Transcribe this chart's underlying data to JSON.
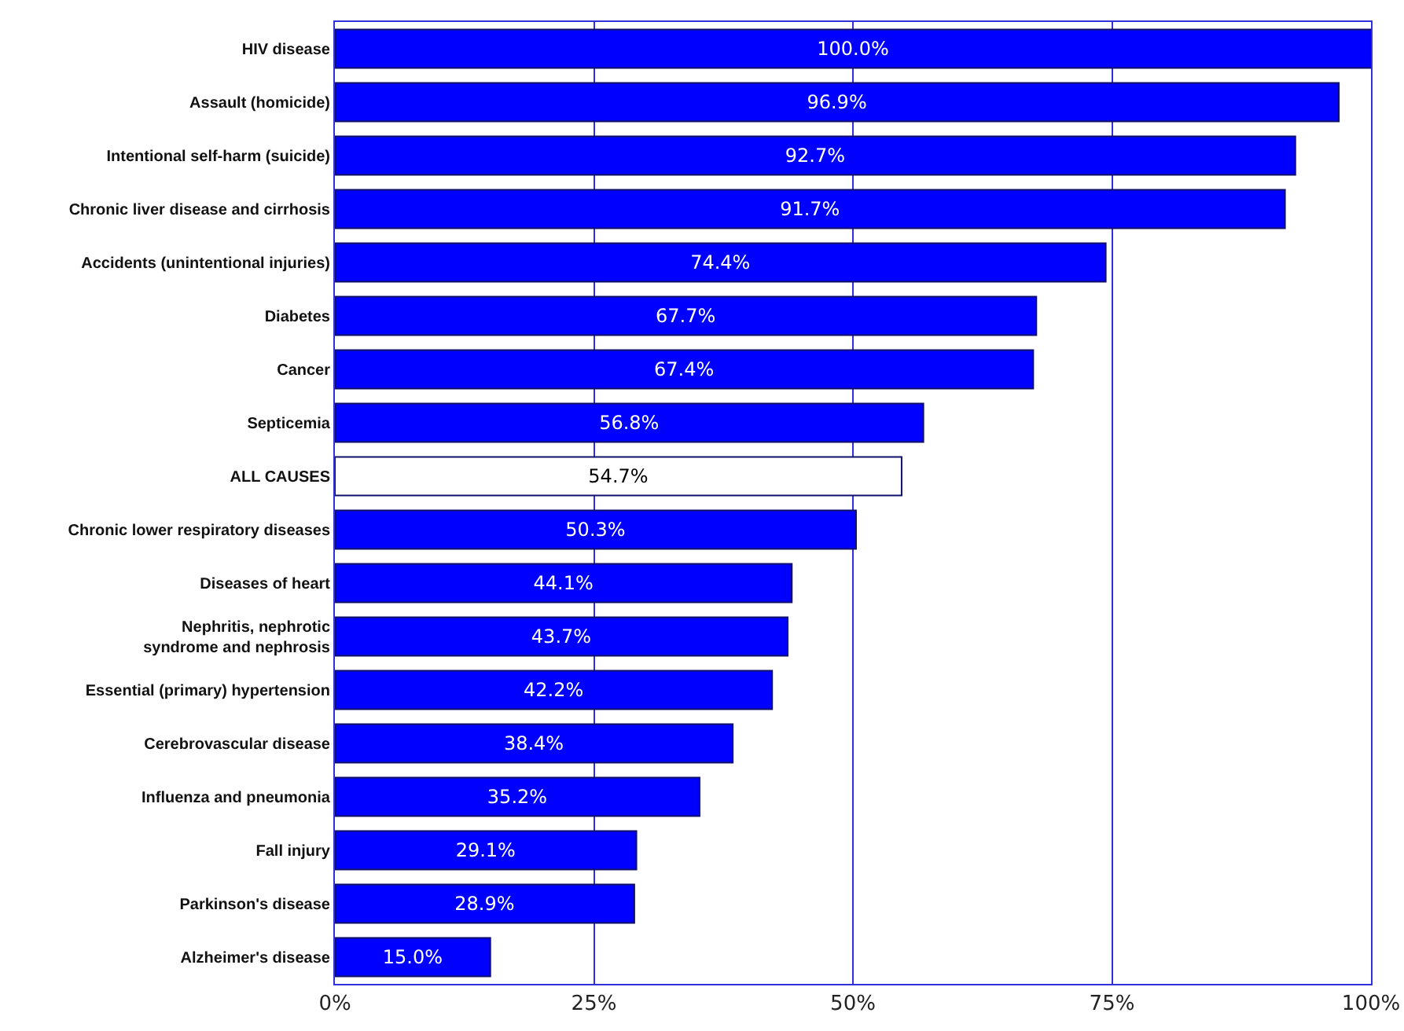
{
  "chart_data": {
    "type": "bar",
    "orientation": "horizontal",
    "categories": [
      "HIV disease",
      "Assault (homicide)",
      "Intentional self-harm (suicide)",
      "Chronic liver disease and cirrhosis",
      "Accidents (unintentional injuries)",
      "Diabetes",
      "Cancer",
      "Septicemia",
      "ALL CAUSES",
      "Chronic lower respiratory diseases",
      "Diseases of heart",
      "Nephritis, nephrotic syndrome and nephrosis",
      "Essential (primary) hypertension",
      "Cerebrovascular disease",
      "Influenza and pneumonia",
      "Fall injury",
      "Parkinson's disease",
      "Alzheimer's disease"
    ],
    "values": [
      100.0,
      96.9,
      92.7,
      91.7,
      74.4,
      67.7,
      67.4,
      56.8,
      54.7,
      50.3,
      44.1,
      43.7,
      42.2,
      38.4,
      35.2,
      29.1,
      28.9,
      15.0
    ],
    "value_labels": [
      "100.0%",
      "96.9%",
      "92.7%",
      "91.7%",
      "74.4%",
      "67.7%",
      "67.4%",
      "56.8%",
      "54.7%",
      "50.3%",
      "44.1%",
      "43.7%",
      "42.2%",
      "38.4%",
      "35.2%",
      "29.1%",
      "28.9%",
      "15.0%"
    ],
    "colors": [
      "#0000ff",
      "#0000ff",
      "#0000ff",
      "#0000ff",
      "#0000ff",
      "#0000ff",
      "#0000ff",
      "#0000ff",
      "#ffffff",
      "#0000ff",
      "#0000ff",
      "#0000ff",
      "#0000ff",
      "#0000ff",
      "#0000ff",
      "#0000ff",
      "#0000ff",
      "#0000ff"
    ],
    "xlim": [
      0,
      100
    ],
    "xticks": [
      {
        "value": 0,
        "label": "0%"
      },
      {
        "value": 25,
        "label": "25%"
      },
      {
        "value": 50,
        "label": "50%"
      },
      {
        "value": 75,
        "label": "75%"
      },
      {
        "value": 100,
        "label": "100%"
      }
    ],
    "grid": "x"
  }
}
